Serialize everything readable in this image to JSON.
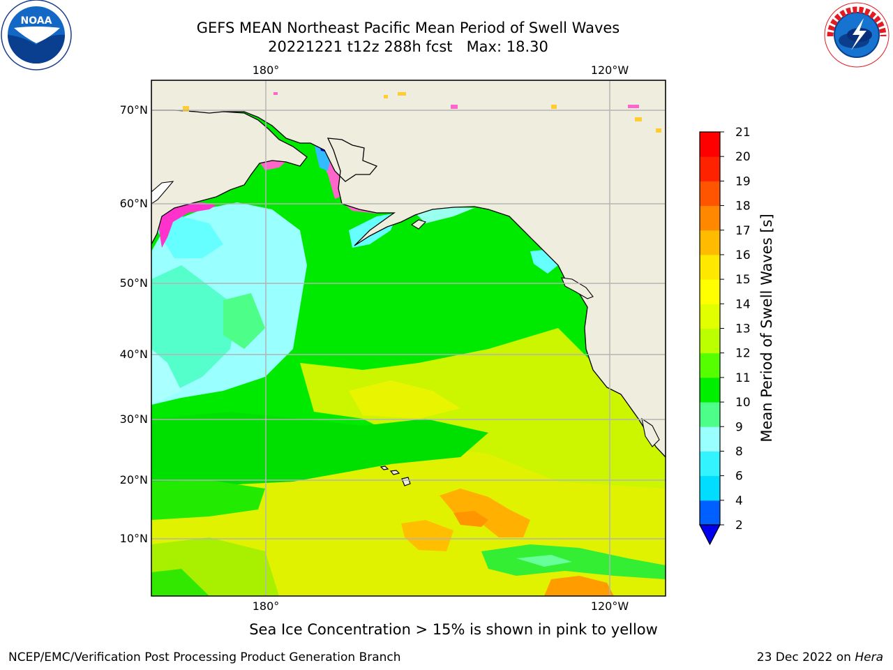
{
  "title": {
    "line1": "GEFS MEAN Northeast Pacific Mean Period of Swell Waves",
    "line2": "20221221 t12z 288h fcst   Max: 18.30"
  },
  "map": {
    "lon_labels": [
      "180°",
      "120°W"
    ],
    "lat_labels": [
      "70°N",
      "60°N",
      "50°N",
      "40°N",
      "30°N",
      "20°N",
      "10°N"
    ],
    "colors": {
      "land": "#efedde",
      "grid": "#b3b3b3",
      "coast": "#000000"
    }
  },
  "colorbar": {
    "label": "Mean Period of Swell Waves [s]",
    "ticks": [
      "2",
      "4",
      "6",
      "8",
      "9",
      "10",
      "11",
      "12",
      "13",
      "14",
      "15",
      "16",
      "17",
      "18",
      "19",
      "20",
      "21"
    ],
    "colors": [
      "#0060ff",
      "#00ddff",
      "#33f3ff",
      "#99ffff",
      "#4dff88",
      "#00ee00",
      "#55ff00",
      "#bbff00",
      "#e2ff00",
      "#ffff00",
      "#ffe800",
      "#ffbb00",
      "#ff8800",
      "#ff5500",
      "#ff2200",
      "#ff0000"
    ],
    "extend_color": "#0000ee"
  },
  "footer": {
    "note": "Sea Ice Concentration > 15% is shown in pink to yellow",
    "credit_left": "NCEP/EMC/Verification Post Processing Product Generation Branch",
    "credit_date": "23 Dec 2022 on ",
    "credit_host": "Hera"
  },
  "logos": {
    "left": "NOAA",
    "right": "NATIONAL WEATHER SERVICE"
  }
}
